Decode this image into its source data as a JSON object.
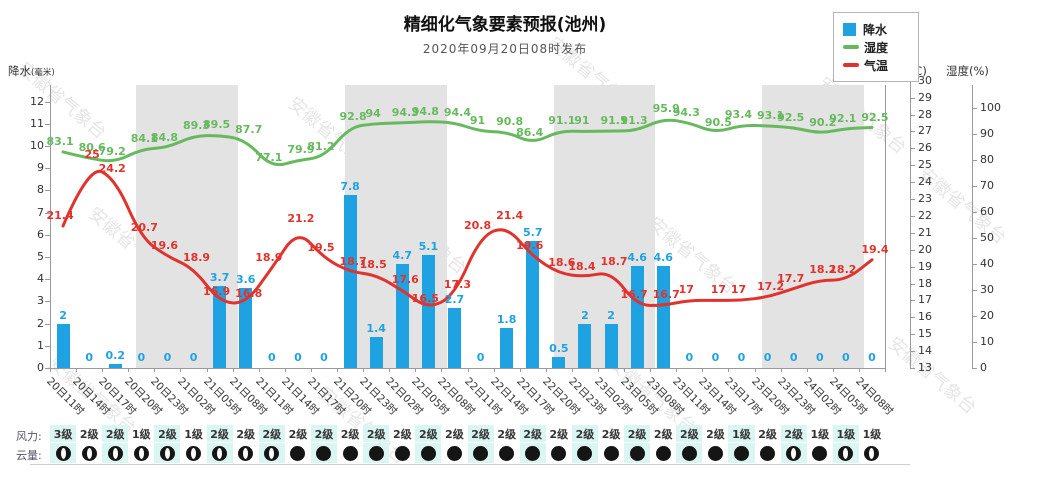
{
  "title": "精细化气象要素预报(池州)",
  "subtitle": "2020年09月20日08时发布",
  "watermark": "安徽省气象台",
  "legend": {
    "items": [
      {
        "label": "降水",
        "type": "bar",
        "color": "#1FA2E2"
      },
      {
        "label": "湿度",
        "type": "line",
        "color": "#67B95E"
      },
      {
        "label": "气温",
        "type": "line",
        "color": "#E1332D"
      }
    ]
  },
  "axes": {
    "precip": {
      "title": "降水",
      "unit": "(毫米)",
      "min": 0,
      "max": 12,
      "step": 1
    },
    "temp": {
      "title": "气温(℃)",
      "min": 13,
      "max": 30,
      "step": 1
    },
    "humidity": {
      "title": "湿度(%)",
      "min": 0,
      "max": 100,
      "step": 10
    }
  },
  "rows": {
    "wind_label": "风力:",
    "cloud_label": "云量:"
  },
  "colors": {
    "bar": "#1FA2E2",
    "humidity_line": "#67B95E",
    "temp_line": "#E1332D",
    "night_band": "#E3E3E3",
    "row_cell": "#D9F6F2",
    "axis": "#9a9a9a"
  },
  "chart_data": {
    "type": "combo",
    "categories": [
      "20日11时",
      "20日14时",
      "20日17时",
      "20日20时",
      "20日23时",
      "21日02时",
      "21日05时",
      "21日08时",
      "21日11时",
      "21日14时",
      "21日17时",
      "21日20时",
      "21日23时",
      "22日02时",
      "22日05时",
      "22日08时",
      "22日11时",
      "22日14时",
      "22日17时",
      "22日20时",
      "22日23时",
      "23日02时",
      "23日05时",
      "23日08时",
      "23日11时",
      "23日14时",
      "23日17时",
      "23日20时",
      "23日23时",
      "24日02时",
      "24日05时",
      "24日08时"
    ],
    "series": [
      {
        "name": "降水",
        "type": "bar",
        "axis": "precip",
        "color": "#1FA2E2",
        "values": [
          2,
          0,
          0.2,
          0,
          0,
          0,
          3.7,
          3.6,
          0,
          0,
          0,
          7.8,
          1.4,
          4.7,
          5.1,
          2.7,
          0,
          1.8,
          5.7,
          0.5,
          2,
          2,
          4.6,
          4.6,
          0,
          0,
          0,
          0,
          0,
          0,
          0,
          0
        ]
      },
      {
        "name": "湿度",
        "type": "line",
        "axis": "humidity",
        "color": "#67B95E",
        "values": [
          83.1,
          80.6,
          79.2,
          84.1,
          84.8,
          89.3,
          89.5,
          87.7,
          77.1,
          79.9,
          81.2,
          92.8,
          94,
          94.3,
          94.8,
          94.4,
          91,
          90.8,
          86.4,
          91.1,
          91,
          91.1,
          91.3,
          95.9,
          94.3,
          90.5,
          93.4,
          93.1,
          92.5,
          90.2,
          92.1,
          92.5
        ]
      },
      {
        "name": "气温",
        "type": "line",
        "axis": "temp",
        "color": "#E1332D",
        "values": [
          21.4,
          25,
          24.2,
          20.7,
          19.6,
          18.9,
          16.9,
          16.8,
          18.9,
          21.2,
          19.5,
          18.7,
          18.5,
          17.6,
          16.5,
          17.3,
          20.8,
          21.4,
          19.6,
          18.6,
          18.4,
          18.7,
          16.7,
          16.7,
          17,
          17,
          17,
          17.2,
          17.7,
          18.2,
          18.2,
          19.4
        ]
      }
    ],
    "wind": [
      "3级",
      "2级",
      "2级",
      "1级",
      "2级",
      "1级",
      "2级",
      "2级",
      "2级",
      "2级",
      "2级",
      "2级",
      "2级",
      "2级",
      "2级",
      "2级",
      "2级",
      "2级",
      "2级",
      "2级",
      "2级",
      "2级",
      "2级",
      "2级",
      "2级",
      "2级",
      "1级",
      "2级",
      "2级",
      "1级",
      "1级",
      "1级"
    ],
    "cloud": [
      "partial",
      "partial",
      "partial",
      "partial",
      "partial",
      "partial",
      "partial",
      "partial",
      "partial",
      "solid",
      "solid",
      "solid",
      "solid",
      "solid",
      "solid",
      "solid",
      "solid",
      "solid",
      "solid",
      "solid",
      "solid",
      "solid",
      "solid",
      "solid",
      "solid",
      "solid",
      "solid",
      "solid",
      "partial",
      "solid",
      "partial",
      "partial"
    ],
    "night_bands": [
      [
        4,
        7
      ],
      [
        12,
        15
      ],
      [
        20,
        23
      ],
      [
        28,
        31
      ]
    ],
    "legend_position": "top-right",
    "grid": false
  }
}
